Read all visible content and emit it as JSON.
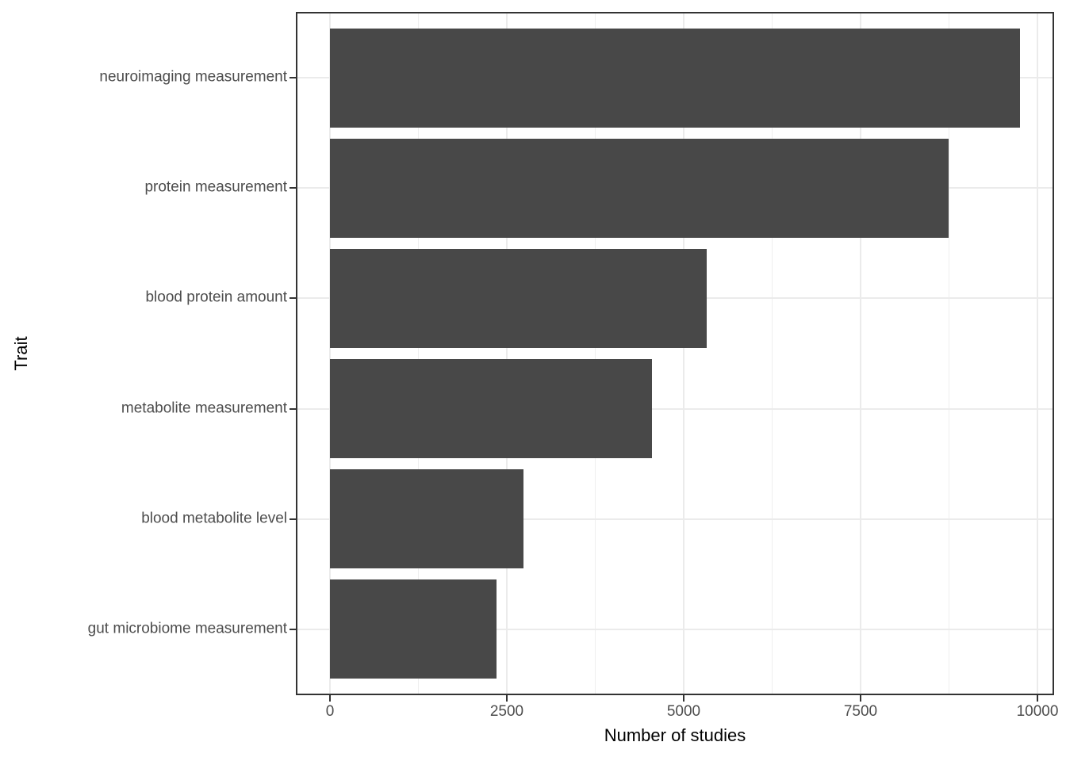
{
  "chart_data": {
    "type": "bar",
    "orientation": "horizontal",
    "categories": [
      "neuroimaging measurement",
      "protein measurement",
      "blood protein amount",
      "metabolite measurement",
      "blood metabolite level",
      "gut microbiome measurement"
    ],
    "values": [
      9750,
      8740,
      5330,
      4550,
      2740,
      2350
    ],
    "xlabel": "Number of studies",
    "ylabel": "Trait",
    "xticks": [
      0,
      2500,
      5000,
      7500,
      10000
    ],
    "xtick_labels": [
      "0",
      "2500",
      "5000",
      "7500",
      "10000"
    ],
    "xlim": [
      0,
      10235
    ],
    "grid": true,
    "legend_position": "none",
    "style": "ggplot2-theme-bw",
    "colors": {
      "bar_fill": "#484848",
      "panel_border": "#333333",
      "grid_major": "#ebebeb",
      "grid_minor": "#efefef",
      "axis_text": "#4d4d4d",
      "axis_title": "#000000",
      "tick_mark": "#333333",
      "background": "#ffffff"
    }
  }
}
